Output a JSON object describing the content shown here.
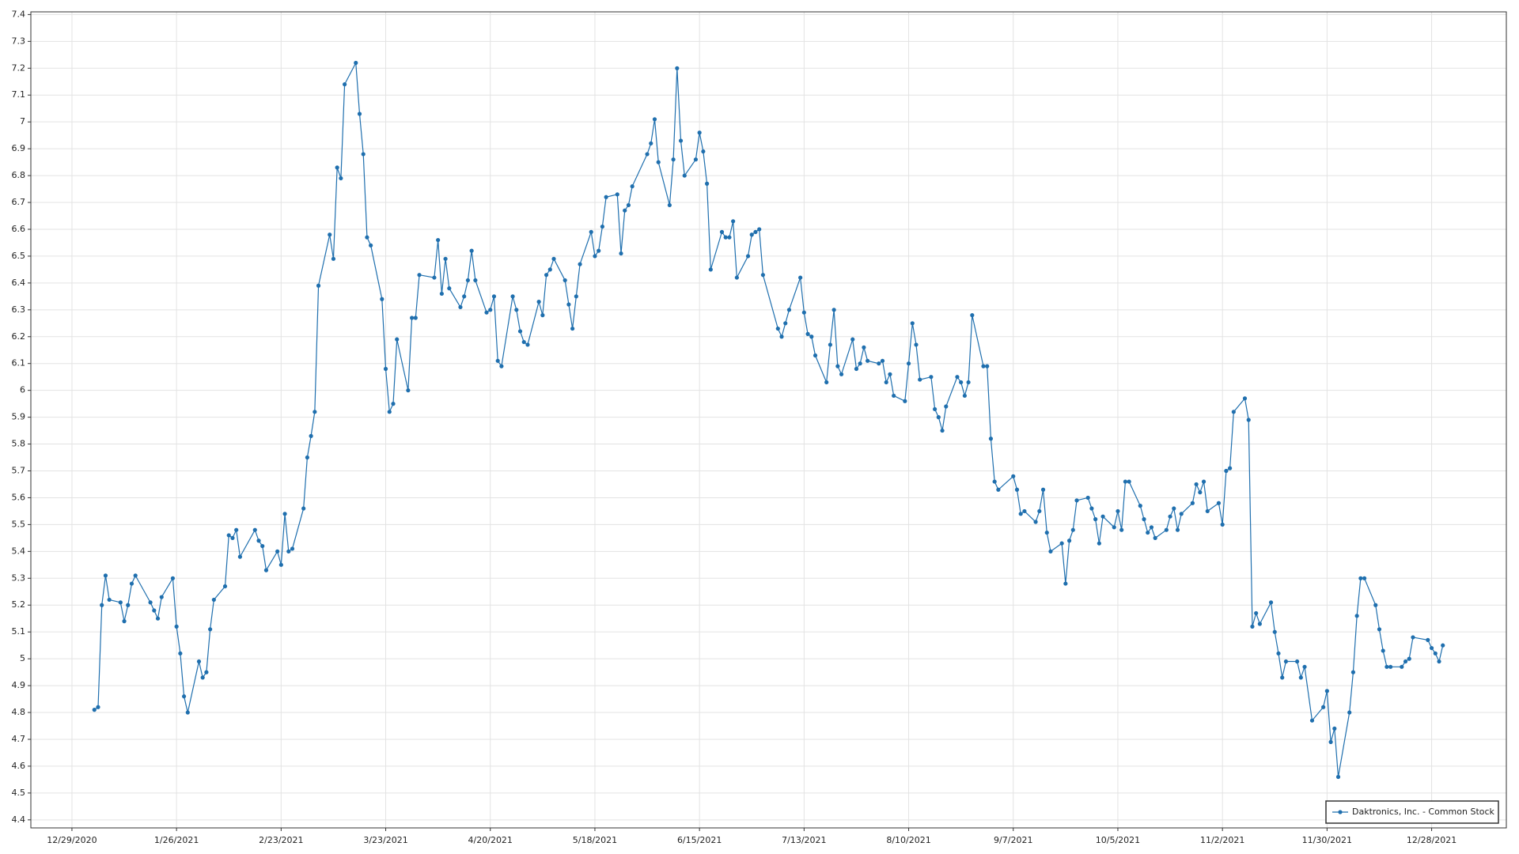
{
  "chart_data": {
    "type": "line",
    "x": [
      "1/4/2021",
      "1/5/2021",
      "1/6/2021",
      "1/7/2021",
      "1/8/2021",
      "1/11/2021",
      "1/12/2021",
      "1/13/2021",
      "1/14/2021",
      "1/15/2021",
      "1/19/2021",
      "1/20/2021",
      "1/21/2021",
      "1/22/2021",
      "1/25/2021",
      "1/26/2021",
      "1/27/2021",
      "1/28/2021",
      "1/29/2021",
      "2/1/2021",
      "2/2/2021",
      "2/3/2021",
      "2/4/2021",
      "2/5/2021",
      "2/8/2021",
      "2/9/2021",
      "2/10/2021",
      "2/11/2021",
      "2/12/2021",
      "2/16/2021",
      "2/17/2021",
      "2/18/2021",
      "2/19/2021",
      "2/22/2021",
      "2/23/2021",
      "2/24/2021",
      "2/25/2021",
      "2/26/2021",
      "3/1/2021",
      "3/2/2021",
      "3/3/2021",
      "3/4/2021",
      "3/5/2021",
      "3/8/2021",
      "3/9/2021",
      "3/10/2021",
      "3/11/2021",
      "3/12/2021",
      "3/15/2021",
      "3/16/2021",
      "3/17/2021",
      "3/18/2021",
      "3/19/2021",
      "3/22/2021",
      "3/23/2021",
      "3/24/2021",
      "3/25/2021",
      "3/26/2021",
      "3/29/2021",
      "3/30/2021",
      "3/31/2021",
      "4/1/2021",
      "4/5/2021",
      "4/6/2021",
      "4/7/2021",
      "4/8/2021",
      "4/9/2021",
      "4/12/2021",
      "4/13/2021",
      "4/14/2021",
      "4/15/2021",
      "4/16/2021",
      "4/19/2021",
      "4/20/2021",
      "4/21/2021",
      "4/22/2021",
      "4/23/2021",
      "4/26/2021",
      "4/27/2021",
      "4/28/2021",
      "4/29/2021",
      "4/30/2021",
      "5/3/2021",
      "5/4/2021",
      "5/5/2021",
      "5/6/2021",
      "5/7/2021",
      "5/10/2021",
      "5/11/2021",
      "5/12/2021",
      "5/13/2021",
      "5/14/2021",
      "5/17/2021",
      "5/18/2021",
      "5/19/2021",
      "5/20/2021",
      "5/21/2021",
      "5/24/2021",
      "5/25/2021",
      "5/26/2021",
      "5/27/2021",
      "5/28/2021",
      "6/1/2021",
      "6/2/2021",
      "6/3/2021",
      "6/4/2021",
      "6/7/2021",
      "6/8/2021",
      "6/9/2021",
      "6/10/2021",
      "6/11/2021",
      "6/14/2021",
      "6/15/2021",
      "6/16/2021",
      "6/17/2021",
      "6/18/2021",
      "6/21/2021",
      "6/22/2021",
      "6/23/2021",
      "6/24/2021",
      "6/25/2021",
      "6/28/2021",
      "6/29/2021",
      "6/30/2021",
      "7/1/2021",
      "7/2/2021",
      "7/6/2021",
      "7/7/2021",
      "7/8/2021",
      "7/9/2021",
      "7/12/2021",
      "7/13/2021",
      "7/14/2021",
      "7/15/2021",
      "7/16/2021",
      "7/19/2021",
      "7/20/2021",
      "7/21/2021",
      "7/22/2021",
      "7/23/2021",
      "7/26/2021",
      "7/27/2021",
      "7/28/2021",
      "7/29/2021",
      "7/30/2021",
      "8/2/2021",
      "8/3/2021",
      "8/4/2021",
      "8/5/2021",
      "8/6/2021",
      "8/9/2021",
      "8/10/2021",
      "8/11/2021",
      "8/12/2021",
      "8/13/2021",
      "8/16/2021",
      "8/17/2021",
      "8/18/2021",
      "8/19/2021",
      "8/20/2021",
      "8/23/2021",
      "8/24/2021",
      "8/25/2021",
      "8/26/2021",
      "8/27/2021",
      "8/30/2021",
      "8/31/2021",
      "9/1/2021",
      "9/2/2021",
      "9/3/2021",
      "9/7/2021",
      "9/8/2021",
      "9/9/2021",
      "9/10/2021",
      "9/13/2021",
      "9/14/2021",
      "9/15/2021",
      "9/16/2021",
      "9/17/2021",
      "9/20/2021",
      "9/21/2021",
      "9/22/2021",
      "9/23/2021",
      "9/24/2021",
      "9/27/2021",
      "9/28/2021",
      "9/29/2021",
      "9/30/2021",
      "10/1/2021",
      "10/4/2021",
      "10/5/2021",
      "10/6/2021",
      "10/7/2021",
      "10/8/2021",
      "10/11/2021",
      "10/12/2021",
      "10/13/2021",
      "10/14/2021",
      "10/15/2021",
      "10/18/2021",
      "10/19/2021",
      "10/20/2021",
      "10/21/2021",
      "10/22/2021",
      "10/25/2021",
      "10/26/2021",
      "10/27/2021",
      "10/28/2021",
      "10/29/2021",
      "11/1/2021",
      "11/2/2021",
      "11/3/2021",
      "11/4/2021",
      "11/5/2021",
      "11/8/2021",
      "11/9/2021",
      "11/10/2021",
      "11/11/2021",
      "11/12/2021",
      "11/15/2021",
      "11/16/2021",
      "11/17/2021",
      "11/18/2021",
      "11/19/2021",
      "11/22/2021",
      "11/23/2021",
      "11/24/2021",
      "11/26/2021",
      "11/29/2021",
      "11/30/2021",
      "12/1/2021",
      "12/2/2021",
      "12/3/2021",
      "12/6/2021",
      "12/7/2021",
      "12/8/2021",
      "12/9/2021",
      "12/10/2021",
      "12/13/2021",
      "12/14/2021",
      "12/15/2021",
      "12/16/2021",
      "12/17/2021",
      "12/20/2021",
      "12/21/2021",
      "12/22/2021",
      "12/23/2021",
      "12/27/2021",
      "12/28/2021",
      "12/29/2021",
      "12/30/2021",
      "12/31/2021"
    ],
    "series": [
      {
        "name": "Daktronics, Inc. - Common Stock",
        "color": "#1f6fae",
        "values": [
          4.81,
          4.82,
          5.2,
          5.31,
          5.22,
          5.21,
          5.14,
          5.2,
          5.28,
          5.31,
          5.21,
          5.18,
          5.15,
          5.23,
          5.3,
          5.12,
          5.02,
          4.86,
          4.8,
          4.99,
          4.93,
          4.95,
          5.11,
          5.22,
          5.27,
          5.46,
          5.45,
          5.48,
          5.38,
          5.48,
          5.44,
          5.42,
          5.33,
          5.4,
          5.35,
          5.54,
          5.4,
          5.41,
          5.56,
          5.75,
          5.83,
          5.92,
          6.39,
          6.58,
          6.49,
          6.83,
          6.79,
          7.14,
          7.22,
          7.03,
          6.88,
          6.57,
          6.54,
          6.34,
          6.08,
          5.92,
          5.95,
          6.19,
          6.0,
          6.27,
          6.27,
          6.43,
          6.42,
          6.56,
          6.36,
          6.49,
          6.38,
          6.31,
          6.35,
          6.41,
          6.52,
          6.41,
          6.29,
          6.3,
          6.35,
          6.11,
          6.09,
          6.35,
          6.3,
          6.22,
          6.18,
          6.17,
          6.33,
          6.28,
          6.43,
          6.45,
          6.49,
          6.41,
          6.32,
          6.23,
          6.35,
          6.47,
          6.59,
          6.5,
          6.52,
          6.61,
          6.72,
          6.73,
          6.51,
          6.67,
          6.69,
          6.76,
          6.88,
          6.92,
          7.01,
          6.85,
          6.69,
          6.86,
          7.2,
          6.93,
          6.8,
          6.86,
          6.96,
          6.89,
          6.77,
          6.45,
          6.59,
          6.57,
          6.57,
          6.63,
          6.42,
          6.5,
          6.58,
          6.59,
          6.6,
          6.43,
          6.23,
          6.2,
          6.25,
          6.3,
          6.42,
          6.29,
          6.21,
          6.2,
          6.13,
          6.03,
          6.17,
          6.3,
          6.09,
          6.06,
          6.19,
          6.08,
          6.1,
          6.16,
          6.11,
          6.1,
          6.11,
          6.03,
          6.06,
          5.98,
          5.96,
          6.1,
          6.25,
          6.17,
          6.04,
          6.05,
          5.93,
          5.9,
          5.85,
          5.94,
          6.05,
          6.03,
          5.98,
          6.03,
          6.28,
          6.09,
          6.09,
          5.82,
          5.66,
          5.63,
          5.68,
          5.63,
          5.54,
          5.55,
          5.51,
          5.55,
          5.63,
          5.47,
          5.4,
          5.43,
          5.28,
          5.44,
          5.48,
          5.59,
          5.6,
          5.56,
          5.52,
          5.43,
          5.53,
          5.49,
          5.55,
          5.48,
          5.66,
          5.66,
          5.57,
          5.52,
          5.47,
          5.49,
          5.45,
          5.48,
          5.53,
          5.56,
          5.48,
          5.54,
          5.58,
          5.65,
          5.62,
          5.66,
          5.55,
          5.58,
          5.5,
          5.7,
          5.71,
          5.92,
          5.97,
          5.89,
          5.12,
          5.17,
          5.13,
          5.21,
          5.1,
          5.02,
          4.93,
          4.99,
          4.99,
          4.93,
          4.97,
          4.77,
          4.82,
          4.88,
          4.69,
          4.74,
          4.56,
          4.8,
          4.95,
          5.16,
          5.3,
          5.3,
          5.2,
          5.11,
          5.03,
          4.97,
          4.97,
          4.97,
          4.99,
          5.0,
          5.08,
          5.07,
          5.04,
          5.02,
          4.99,
          5.05
        ]
      }
    ],
    "xlim": [
      "12/18/2020",
      "1/17/2022"
    ],
    "xticks": [
      "12/29/2020",
      "1/26/2021",
      "2/23/2021",
      "3/23/2021",
      "4/20/2021",
      "5/18/2021",
      "6/15/2021",
      "7/13/2021",
      "8/10/2021",
      "9/7/2021",
      "10/5/2021",
      "11/2/2021",
      "11/30/2021",
      "12/28/2021"
    ],
    "ylim": [
      4.37,
      7.41
    ],
    "yticks": [
      4.4,
      4.5,
      4.6,
      4.7,
      4.8,
      4.9,
      5,
      5.1,
      5.2,
      5.3,
      5.4,
      5.5,
      5.6,
      5.7,
      5.8,
      5.9,
      6,
      6.1,
      6.2,
      6.3,
      6.4,
      6.5,
      6.6,
      6.7,
      6.8,
      6.9,
      7,
      7.1,
      7.2,
      7.3,
      7.4
    ],
    "grid": true,
    "legend": "lower right"
  }
}
